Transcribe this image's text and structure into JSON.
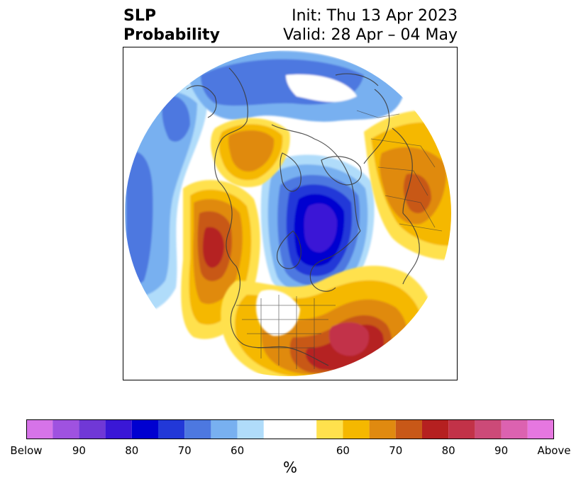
{
  "title": {
    "left_line1": "SLP",
    "left_line2": "Probability",
    "right_line1": "Init: Thu 13 Apr 2023",
    "right_line2": "Valid: 28 Apr – 04 May"
  },
  "map": {
    "projection": "north-polar-stereographic",
    "features": [
      "coastlines",
      "country borders",
      "US state borders"
    ],
    "anomalies": [
      {
        "region": "Arctic Ocean / Hudson Bay / Canadian Arctic",
        "sign": "below",
        "level": "85-90"
      },
      {
        "region": "Beaufort Sea / Alaska north slope",
        "sign": "below",
        "level": "65-70"
      },
      {
        "region": "North Pacific / Aleutians",
        "sign": "below",
        "level": "65-70"
      },
      {
        "region": "Eastern Siberia / Bering",
        "sign": "above",
        "level": "65-70"
      },
      {
        "region": "Gulf of Alaska / Pacific Northwest",
        "sign": "above",
        "level": "75-80"
      },
      {
        "region": "Western North Atlantic",
        "sign": "above",
        "level": "80-85"
      },
      {
        "region": "Europe / Northern Russia",
        "sign": "above",
        "level": "65-70"
      }
    ]
  },
  "colorbar": {
    "unit": "%",
    "colors": [
      "#d673e8",
      "#9f52e0",
      "#7038d6",
      "#3a17d6",
      "#0000d0",
      "#2238d8",
      "#4d78e0",
      "#78b0f0",
      "#b0dcfa",
      "#ffffff",
      "#ffe14d",
      "#f5b800",
      "#e08a10",
      "#c85818",
      "#b52020",
      "#c23248",
      "#cc4a78",
      "#dc62b0",
      "#e677e0"
    ],
    "tick_labels": [
      "Below",
      "90",
      "80",
      "70",
      "60",
      "60",
      "70",
      "80",
      "90",
      "Above"
    ]
  }
}
